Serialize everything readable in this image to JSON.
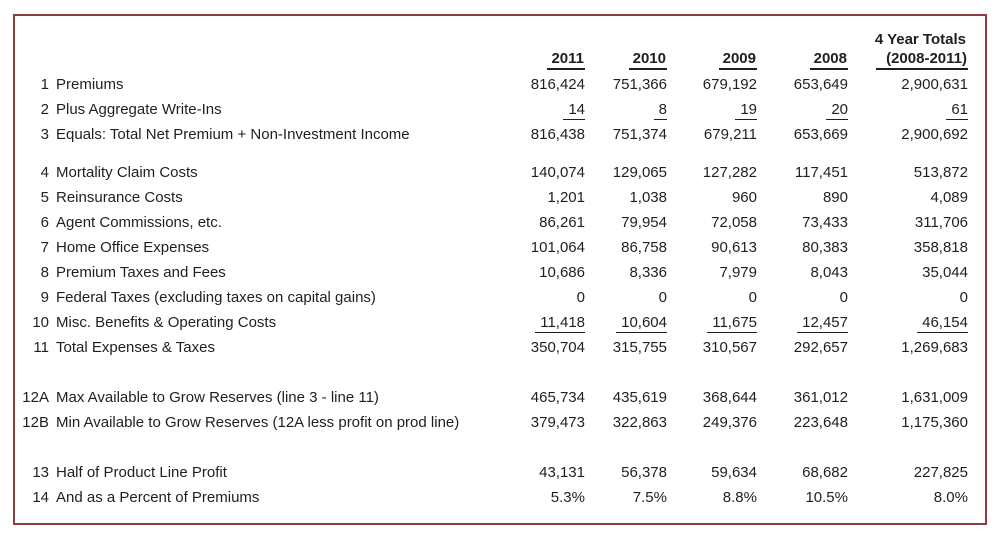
{
  "table": {
    "columns": [
      "2011",
      "2010",
      "2009",
      "2008"
    ],
    "totals_header": {
      "line1": "4 Year Totals",
      "line2": "(2008-2011)"
    },
    "border_color": "#8e3b44",
    "text_color": "#1f1f1f",
    "rows": [
      {
        "num": "1",
        "label": "Premiums",
        "values": [
          "816,424",
          "751,366",
          "679,192",
          "653,649",
          "2,900,631"
        ]
      },
      {
        "num": "2",
        "label": "Plus Aggregate Write-Ins",
        "values": [
          "14",
          "8",
          "19",
          "20",
          "61"
        ]
      },
      {
        "num": "3",
        "label": "Equals: Total Net Premium + Non-Investment Income",
        "values": [
          "816,438",
          "751,374",
          "679,211",
          "653,669",
          "2,900,692"
        ]
      },
      {
        "num": "4",
        "label": "Mortality Claim Costs",
        "values": [
          "140,074",
          "129,065",
          "127,282",
          "117,451",
          "513,872"
        ]
      },
      {
        "num": "5",
        "label": "Reinsurance Costs",
        "values": [
          "1,201",
          "1,038",
          "960",
          "890",
          "4,089"
        ]
      },
      {
        "num": "6",
        "label": "Agent Commissions, etc.",
        "values": [
          "86,261",
          "79,954",
          "72,058",
          "73,433",
          "311,706"
        ]
      },
      {
        "num": "7",
        "label": "Home Office Expenses",
        "values": [
          "101,064",
          "86,758",
          "90,613",
          "80,383",
          "358,818"
        ]
      },
      {
        "num": "8",
        "label": "Premium Taxes and Fees",
        "values": [
          "10,686",
          "8,336",
          "7,979",
          "8,043",
          "35,044"
        ]
      },
      {
        "num": "9",
        "label": "Federal Taxes (excluding taxes on capital gains)",
        "values": [
          "0",
          "0",
          "0",
          "0",
          "0"
        ]
      },
      {
        "num": "10",
        "label": "Misc. Benefits & Operating Costs",
        "values": [
          "11,418",
          "10,604",
          "11,675",
          "12,457",
          "46,154"
        ]
      },
      {
        "num": "11",
        "label": "Total Expenses & Taxes",
        "values": [
          "350,704",
          "315,755",
          "310,567",
          "292,657",
          "1,269,683"
        ]
      },
      {
        "num": "12A",
        "label": "Max Available to Grow Reserves (line 3 - line 11)",
        "values": [
          "465,734",
          "435,619",
          "368,644",
          "361,012",
          "1,631,009"
        ]
      },
      {
        "num": "12B",
        "label": "Min Available to Grow Reserves (12A less profit on prod line)",
        "values": [
          "379,473",
          "322,863",
          "249,376",
          "223,648",
          "1,175,360"
        ]
      },
      {
        "num": "13",
        "label": "Half of Product Line Profit",
        "values": [
          "43,131",
          "56,378",
          "59,634",
          "68,682",
          "227,825"
        ]
      },
      {
        "num": "14",
        "label": "And as a Percent of Premiums",
        "values": [
          "5.3%",
          "7.5%",
          "8.8%",
          "10.5%",
          "8.0%"
        ]
      }
    ]
  }
}
